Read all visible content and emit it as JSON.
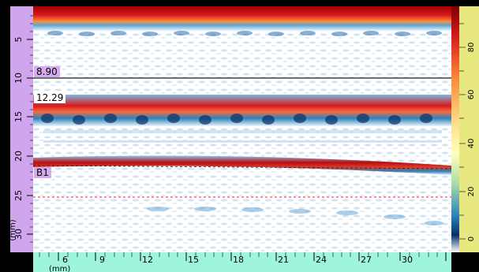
{
  "scan": {
    "markers": [
      {
        "id": "m1",
        "text": "8.90"
      },
      {
        "id": "m2",
        "text": "12.29"
      },
      {
        "id": "m3",
        "text": "B1"
      }
    ]
  },
  "vertical_scale": {
    "unit": "(mm)",
    "ticks": [
      "5",
      "10",
      "15",
      "20",
      "25",
      "30"
    ]
  },
  "horizontal_scale": {
    "unit": "(mm)",
    "ticks": [
      "6",
      "9",
      "12",
      "15",
      "18",
      "21",
      "24",
      "27",
      "30"
    ]
  },
  "color_scale": {
    "ticks": [
      "80",
      "60",
      "40",
      "20",
      "0"
    ],
    "colors": [
      "#7f0000",
      "#d7191c",
      "#fd8d3c",
      "#fee08b",
      "#ffffbf",
      "#abdda4",
      "#2b83ba",
      "#08306b",
      "#ffffff"
    ]
  },
  "colors": {
    "frame": "#000000",
    "ruler_left": "#cfa6ee",
    "ruler_bottom": "#9ff5dc",
    "colorbar_bg": "#e8e880",
    "ref_line_red": "#ff2020",
    "ref_line_dark": "#1b1b1b"
  }
}
